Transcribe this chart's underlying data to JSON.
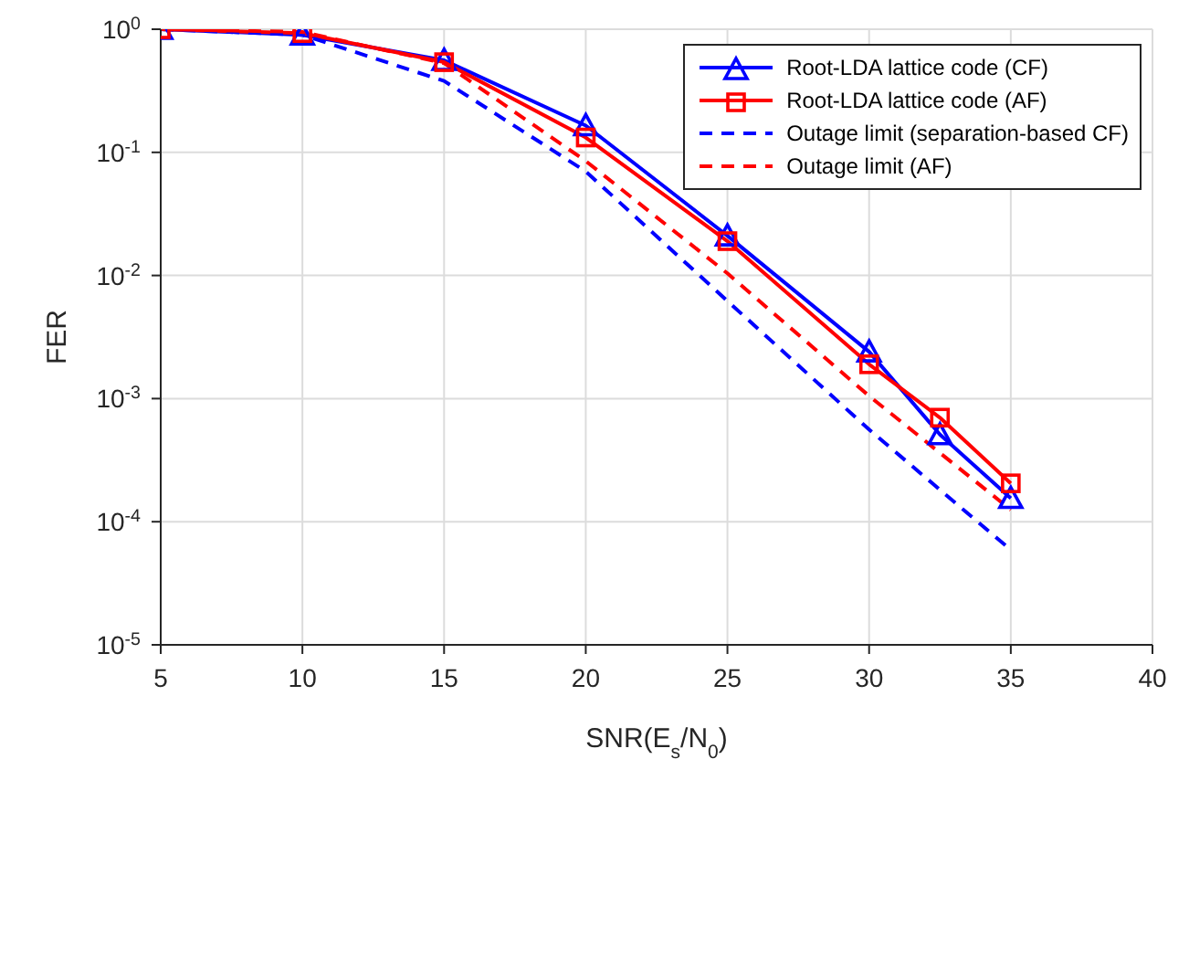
{
  "chart_data": {
    "type": "line",
    "xlabel": "SNR(E$_{s}$/N$_{0}$)",
    "ylabel": "FER",
    "log": "y",
    "grid": true,
    "legend": "top right",
    "x": [
      5,
      10,
      15,
      20,
      25,
      30,
      32.5,
      35
    ],
    "xlim": [
      5,
      40
    ],
    "xticks": [
      5,
      10,
      15,
      20,
      25,
      30,
      35,
      40
    ],
    "ylim": [
      1e-05,
      1
    ],
    "yticks": [
      {
        "value": 1,
        "label": "10$^{0}$"
      },
      {
        "value": 0.1,
        "label": "10$^{-1}$"
      },
      {
        "value": 0.01,
        "label": "10$^{-2}$"
      },
      {
        "value": 0.001,
        "label": "10$^{-3}$"
      },
      {
        "value": 0.0001,
        "label": "10$^{-4}$"
      },
      {
        "value": 1e-05,
        "label": "10$^{-5}$"
      }
    ],
    "series": [
      {
        "name": "Root-LDA lattice code (CF)",
        "color": "#0000ff",
        "marker": "triangle",
        "line_style": "solid",
        "values": [
          1.0,
          0.9,
          0.56,
          0.165,
          0.021,
          0.0024,
          0.00051,
          0.000155
        ]
      },
      {
        "name": "Root-LDA lattice code (AF)",
        "color": "#ff0000",
        "marker": "square",
        "line_style": "solid",
        "values": [
          1.0,
          0.93,
          0.54,
          0.132,
          0.019,
          0.0019,
          0.0007,
          0.000205
        ]
      },
      {
        "name": "Outage limit (separation-based CF)",
        "color": "#0000ff",
        "marker": "none",
        "line_style": "dashed",
        "x": [
          5,
          10,
          15,
          20,
          25,
          30,
          35
        ],
        "values": [
          1.0,
          0.9,
          0.38,
          0.07,
          0.0062,
          0.00056,
          5.9e-05
        ]
      },
      {
        "name": "Outage limit (AF)",
        "color": "#ff0000",
        "marker": "none",
        "line_style": "dashed",
        "x": [
          5,
          10,
          15,
          20,
          25,
          30,
          35
        ],
        "values": [
          1.0,
          0.95,
          0.53,
          0.085,
          0.0104,
          0.00105,
          0.000125
        ]
      }
    ]
  }
}
